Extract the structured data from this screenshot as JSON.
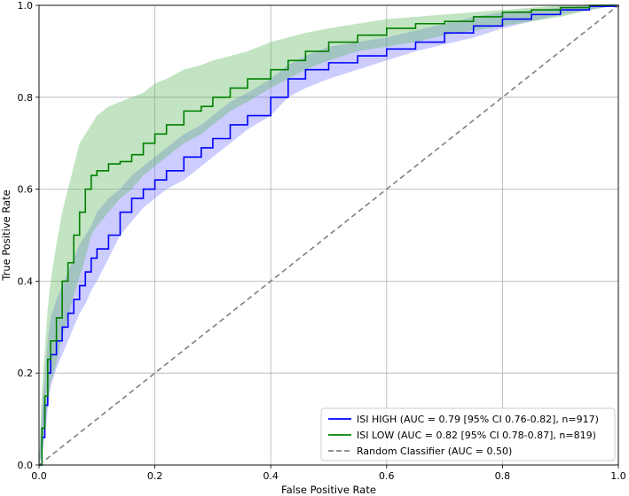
{
  "chart_data": {
    "type": "line",
    "title": "",
    "xlabel": "False Positive Rate",
    "ylabel": "True Positive Rate",
    "xlim": [
      0,
      1
    ],
    "ylim": [
      0,
      1
    ],
    "xticks": [
      "0.0",
      "0.2",
      "0.4",
      "0.6",
      "0.8",
      "1.0"
    ],
    "yticks": [
      "0.0",
      "0.2",
      "0.4",
      "0.6",
      "0.8",
      "1.0"
    ],
    "grid": true,
    "legend_position": "bottom-right",
    "series": [
      {
        "name": "ISI HIGH (AUC = 0.79 [95% CI 0.76-0.82], n=917)",
        "color": "#0000ff",
        "band_color": "#8080ff",
        "x": [
          0,
          0.005,
          0.01,
          0.015,
          0.02,
          0.03,
          0.04,
          0.05,
          0.06,
          0.07,
          0.08,
          0.09,
          0.1,
          0.12,
          0.14,
          0.16,
          0.18,
          0.2,
          0.22,
          0.25,
          0.28,
          0.3,
          0.33,
          0.36,
          0.4,
          0.43,
          0.46,
          0.5,
          0.55,
          0.6,
          0.65,
          0.7,
          0.75,
          0.8,
          0.85,
          0.9,
          0.95,
          1.0
        ],
        "y": [
          0,
          0.06,
          0.13,
          0.2,
          0.24,
          0.27,
          0.3,
          0.33,
          0.36,
          0.39,
          0.42,
          0.45,
          0.47,
          0.5,
          0.55,
          0.58,
          0.6,
          0.62,
          0.64,
          0.67,
          0.69,
          0.71,
          0.74,
          0.76,
          0.8,
          0.84,
          0.86,
          0.875,
          0.89,
          0.905,
          0.92,
          0.94,
          0.955,
          0.97,
          0.98,
          0.99,
          0.998,
          1.0
        ],
        "lower": [
          0,
          0.02,
          0.06,
          0.12,
          0.17,
          0.21,
          0.24,
          0.27,
          0.3,
          0.33,
          0.35,
          0.38,
          0.4,
          0.45,
          0.5,
          0.53,
          0.56,
          0.58,
          0.6,
          0.62,
          0.65,
          0.67,
          0.7,
          0.73,
          0.76,
          0.8,
          0.82,
          0.84,
          0.86,
          0.88,
          0.9,
          0.915,
          0.93,
          0.95,
          0.965,
          0.98,
          0.99,
          1.0
        ],
        "upper": [
          0,
          0.12,
          0.2,
          0.27,
          0.32,
          0.36,
          0.39,
          0.42,
          0.45,
          0.48,
          0.5,
          0.52,
          0.55,
          0.58,
          0.6,
          0.63,
          0.65,
          0.67,
          0.69,
          0.72,
          0.74,
          0.76,
          0.79,
          0.81,
          0.84,
          0.87,
          0.89,
          0.91,
          0.92,
          0.93,
          0.945,
          0.96,
          0.975,
          0.985,
          0.99,
          0.995,
          1.0,
          1.0
        ]
      },
      {
        "name": "ISI LOW (AUC = 0.82 [95% CI 0.78-0.87], n=819)",
        "color": "#008000",
        "band_color": "#66bb66",
        "x": [
          0,
          0.005,
          0.01,
          0.015,
          0.02,
          0.03,
          0.04,
          0.05,
          0.06,
          0.07,
          0.08,
          0.09,
          0.1,
          0.12,
          0.14,
          0.16,
          0.18,
          0.2,
          0.22,
          0.25,
          0.28,
          0.3,
          0.33,
          0.36,
          0.4,
          0.43,
          0.46,
          0.5,
          0.55,
          0.6,
          0.65,
          0.7,
          0.75,
          0.8,
          0.85,
          0.9,
          0.95,
          1.0
        ],
        "y": [
          0,
          0.08,
          0.15,
          0.23,
          0.27,
          0.32,
          0.4,
          0.44,
          0.5,
          0.55,
          0.6,
          0.63,
          0.64,
          0.655,
          0.66,
          0.675,
          0.7,
          0.72,
          0.74,
          0.77,
          0.78,
          0.8,
          0.82,
          0.84,
          0.86,
          0.88,
          0.9,
          0.92,
          0.935,
          0.95,
          0.96,
          0.965,
          0.975,
          0.985,
          0.99,
          0.995,
          1.0,
          1.0
        ],
        "lower": [
          0,
          0.03,
          0.08,
          0.14,
          0.18,
          0.22,
          0.28,
          0.32,
          0.37,
          0.41,
          0.45,
          0.5,
          0.52,
          0.55,
          0.58,
          0.6,
          0.63,
          0.65,
          0.67,
          0.7,
          0.72,
          0.74,
          0.77,
          0.79,
          0.82,
          0.84,
          0.86,
          0.88,
          0.9,
          0.91,
          0.92,
          0.935,
          0.945,
          0.955,
          0.965,
          0.975,
          0.99,
          1.0
        ],
        "upper": [
          0,
          0.16,
          0.25,
          0.34,
          0.4,
          0.48,
          0.55,
          0.6,
          0.65,
          0.7,
          0.72,
          0.74,
          0.76,
          0.78,
          0.79,
          0.8,
          0.81,
          0.83,
          0.84,
          0.86,
          0.87,
          0.88,
          0.89,
          0.9,
          0.92,
          0.93,
          0.94,
          0.95,
          0.96,
          0.97,
          0.975,
          0.98,
          0.985,
          0.99,
          0.995,
          1.0,
          1.0,
          1.0
        ]
      },
      {
        "name": "Random Classifier (AUC = 0.50)",
        "color": "#808080",
        "dashed": true,
        "x": [
          0,
          1
        ],
        "y": [
          0,
          1
        ]
      }
    ]
  }
}
